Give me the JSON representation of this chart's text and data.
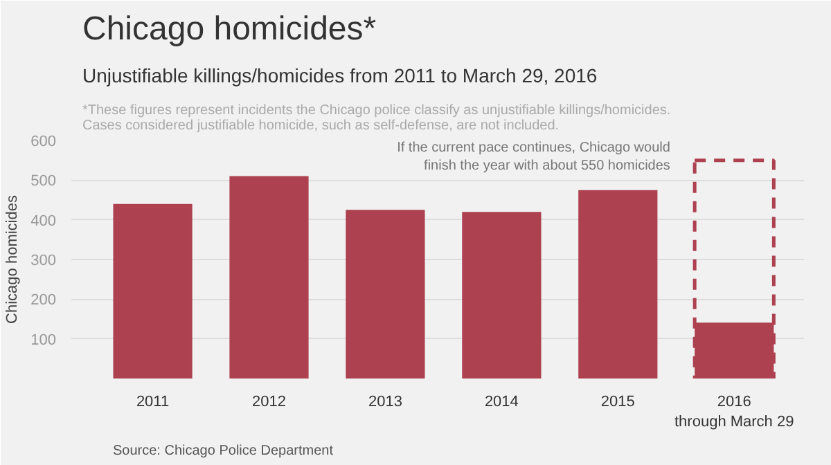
{
  "chart_data": {
    "type": "bar",
    "title": "Chicago homicides*",
    "subtitle": "Unjustifiable killings/homicides from 2011 to March 29, 2016",
    "ylabel": "Chicago homicides",
    "categories": [
      "2011",
      "2012",
      "2013",
      "2014",
      "2015",
      "2016\nthrough March 29"
    ],
    "series": [
      {
        "color": "#ad4150",
        "values": [
          440,
          510,
          425,
          420,
          475,
          141
        ]
      },
      {
        "color": "#ad4150",
        "line_style": "dashed",
        "values": [
          null,
          null,
          null,
          null,
          null,
          550
        ]
      }
    ],
    "ylim": [
      0,
      600
    ],
    "yticks": [
      100,
      200,
      300,
      400,
      500,
      600
    ],
    "grid": "y",
    "annotations": [
      "*These figures represent incidents the Chicago police classify as unjustifiable killings/homicides.\nCases considered justifiable homicide, such as self-defense, are not included.",
      "If the current pace continues, Chicago would\nfinish the year with about 550 homicides",
      "Source: Chicago Police Department"
    ]
  }
}
